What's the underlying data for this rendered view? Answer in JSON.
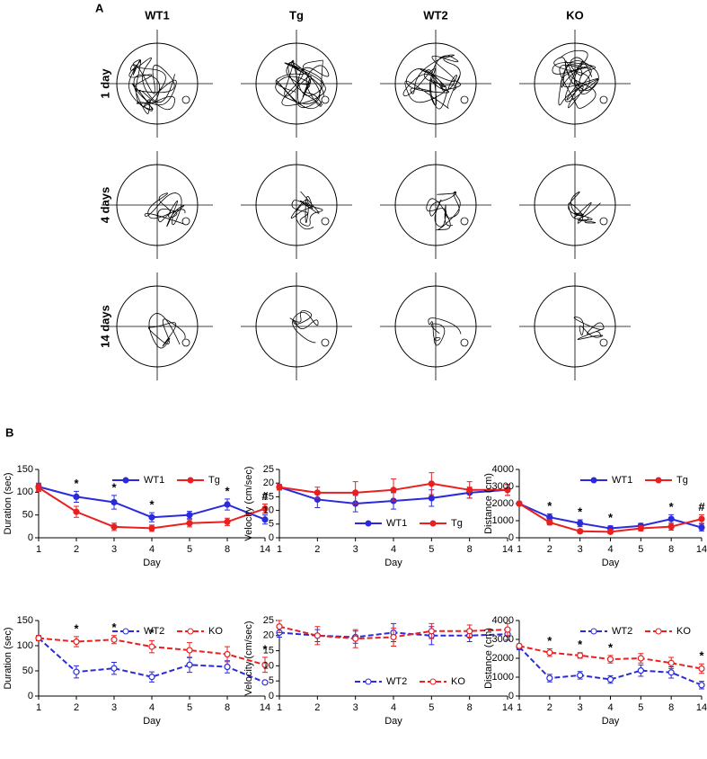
{
  "panel_a": {
    "label": "A",
    "columns": [
      "WT1",
      "Tg",
      "WT2",
      "KO"
    ],
    "rows": [
      "1 day",
      "4 days",
      "14 days"
    ]
  },
  "panel_b_label": "B",
  "chart_data": [
    {
      "type": "line",
      "xlabel": "Day",
      "ylabel": "Duration (sec)",
      "categories": [
        "1",
        "2",
        "3",
        "4",
        "5",
        "8",
        "14"
      ],
      "ylim": [
        0,
        150
      ],
      "yticks": [
        0,
        50,
        100,
        150
      ],
      "legend": "upper right",
      "series": [
        {
          "name": "WT1",
          "color": "#2b2bdc",
          "dashed": false,
          "values": [
            112,
            90,
            78,
            45,
            50,
            73,
            40
          ],
          "errors": [
            8,
            12,
            15,
            10,
            8,
            12,
            10
          ]
        },
        {
          "name": "Tg",
          "color": "#e82020",
          "dashed": false,
          "values": [
            110,
            57,
            24,
            21,
            32,
            35,
            64
          ],
          "errors": [
            8,
            12,
            8,
            7,
            8,
            8,
            10
          ]
        }
      ],
      "annotations": [
        {
          "text": "*",
          "x": "2"
        },
        {
          "text": "*",
          "x": "3"
        },
        {
          "text": "*",
          "x": "4"
        },
        {
          "text": "*",
          "x": "8"
        },
        {
          "text": "#",
          "x": "14"
        }
      ]
    },
    {
      "type": "line",
      "xlabel": "Day",
      "ylabel": "Velocity (cm/sec)",
      "categories": [
        "1",
        "2",
        "3",
        "4",
        "5",
        "8",
        "14"
      ],
      "ylim": [
        0,
        25
      ],
      "yticks": [
        0,
        5,
        10,
        15,
        20,
        25
      ],
      "legend": "lower right",
      "series": [
        {
          "name": "WT1",
          "color": "#2b2bdc",
          "dashed": false,
          "values": [
            18.5,
            14,
            12.5,
            13.5,
            14.5,
            16.5,
            17.5
          ],
          "errors": [
            1,
            3,
            3,
            3,
            3,
            2,
            2
          ]
        },
        {
          "name": "Tg",
          "color": "#e82020",
          "dashed": false,
          "values": [
            18.5,
            16.5,
            16.5,
            17.5,
            19.8,
            17.5,
            17.5
          ],
          "errors": [
            1,
            2,
            4,
            4,
            4,
            3,
            2
          ]
        }
      ],
      "annotations": []
    },
    {
      "type": "line",
      "xlabel": "Day",
      "ylabel": "Distance (cm)",
      "categories": [
        "1",
        "2",
        "3",
        "4",
        "5",
        "8",
        "14"
      ],
      "ylim": [
        0,
        4000
      ],
      "yticks": [
        0,
        1000,
        2000,
        3000,
        4000
      ],
      "legend": "upper right",
      "series": [
        {
          "name": "WT1",
          "color": "#2b2bdc",
          "dashed": false,
          "values": [
            2000,
            1200,
            850,
            550,
            700,
            1100,
            600
          ],
          "errors": [
            100,
            200,
            200,
            150,
            150,
            250,
            200
          ]
        },
        {
          "name": "Tg",
          "color": "#e82020",
          "dashed": false,
          "values": [
            2000,
            900,
            380,
            350,
            550,
            650,
            1100
          ],
          "errors": [
            100,
            150,
            100,
            100,
            150,
            200,
            250
          ]
        }
      ],
      "annotations": [
        {
          "text": "*",
          "x": "2"
        },
        {
          "text": "*",
          "x": "3"
        },
        {
          "text": "*",
          "x": "4"
        },
        {
          "text": "*",
          "x": "8"
        },
        {
          "text": "#",
          "x": "14"
        }
      ]
    },
    {
      "type": "line",
      "xlabel": "Day",
      "ylabel": "Duration (sec)",
      "categories": [
        "1",
        "2",
        "3",
        "4",
        "5",
        "8",
        "14"
      ],
      "ylim": [
        0,
        150
      ],
      "yticks": [
        0,
        50,
        100,
        150
      ],
      "legend": "upper right",
      "series": [
        {
          "name": "WT2",
          "color": "#2b2bdc",
          "dashed": true,
          "values": [
            115,
            48,
            55,
            38,
            62,
            58,
            27
          ],
          "errors": [
            5,
            12,
            12,
            10,
            15,
            12,
            3
          ]
        },
        {
          "name": "KO",
          "color": "#e82020",
          "dashed": true,
          "values": [
            115,
            108,
            112,
            98,
            91,
            83,
            62
          ],
          "errors": [
            5,
            10,
            8,
            12,
            15,
            15,
            15
          ]
        }
      ],
      "annotations": [
        {
          "text": "*",
          "x": "2"
        },
        {
          "text": "*",
          "x": "3"
        },
        {
          "text": "*",
          "x": "4"
        },
        {
          "text": "*",
          "x": "14"
        }
      ]
    },
    {
      "type": "line",
      "xlabel": "Day",
      "ylabel": "Velocity (cm/sec)",
      "categories": [
        "1",
        "2",
        "3",
        "4",
        "5",
        "8",
        "14"
      ],
      "ylim": [
        0,
        25
      ],
      "yticks": [
        0,
        5,
        10,
        15,
        20,
        25
      ],
      "legend": "lower right",
      "series": [
        {
          "name": "WT2",
          "color": "#2b2bdc",
          "dashed": true,
          "values": [
            21,
            20,
            19.5,
            21,
            20,
            20,
            20.5
          ],
          "errors": [
            1.5,
            2,
            2,
            3,
            3,
            2,
            2
          ]
        },
        {
          "name": "KO",
          "color": "#e82020",
          "dashed": true,
          "values": [
            23,
            20,
            19,
            19.5,
            21.5,
            21.5,
            22
          ],
          "errors": [
            2,
            3,
            3,
            3,
            2.5,
            2,
            2
          ]
        }
      ],
      "annotations": []
    },
    {
      "type": "line",
      "xlabel": "Day",
      "ylabel": "Distance (cm)",
      "categories": [
        "1",
        "2",
        "3",
        "4",
        "5",
        "8",
        "14"
      ],
      "ylim": [
        0,
        4000
      ],
      "yticks": [
        0,
        1000,
        2000,
        3000,
        4000
      ],
      "legend": "upper right",
      "series": [
        {
          "name": "WT2",
          "color": "#2b2bdc",
          "dashed": true,
          "values": [
            2600,
            950,
            1100,
            880,
            1350,
            1250,
            580
          ],
          "errors": [
            150,
            200,
            200,
            200,
            300,
            300,
            200
          ]
        },
        {
          "name": "KO",
          "color": "#e82020",
          "dashed": true,
          "values": [
            2650,
            2300,
            2150,
            1950,
            2000,
            1750,
            1450
          ],
          "errors": [
            100,
            200,
            150,
            200,
            250,
            300,
            250
          ]
        }
      ],
      "annotations": [
        {
          "text": "*",
          "x": "2"
        },
        {
          "text": "*",
          "x": "3"
        },
        {
          "text": "*",
          "x": "4"
        },
        {
          "text": "*",
          "x": "14"
        }
      ]
    }
  ]
}
